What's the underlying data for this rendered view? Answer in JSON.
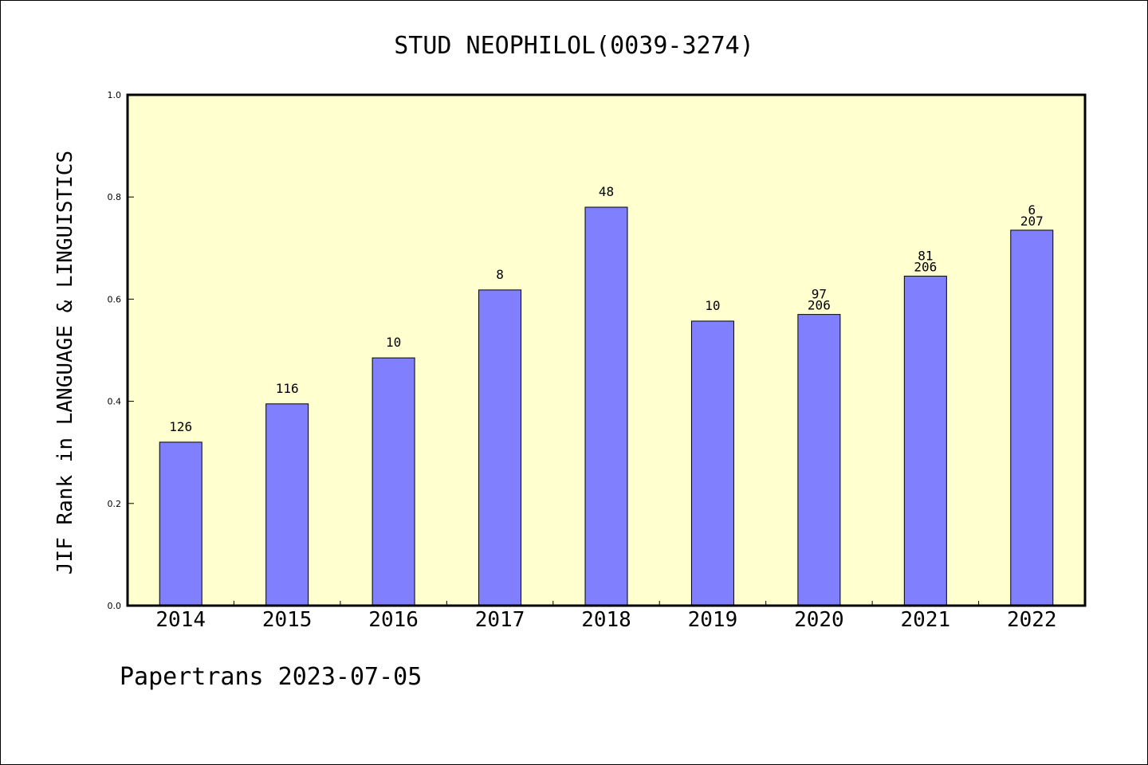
{
  "chart_data": {
    "type": "bar",
    "title": "STUD NEOPHILOL(0039-3274)",
    "ylabel": "JIF Rank in LANGUAGE & LINGUISTICS",
    "xlabel": "",
    "ylim": [
      0,
      1.0
    ],
    "yticks": [
      "0.0",
      "0.2",
      "0.4",
      "0.6",
      "0.8",
      "1.0"
    ],
    "categories": [
      "2014",
      "2015",
      "2016",
      "2017",
      "2018",
      "2019",
      "2020",
      "2021",
      "2022"
    ],
    "values": [
      0.32,
      0.395,
      0.485,
      0.618,
      0.78,
      0.557,
      0.57,
      0.645,
      0.735
    ],
    "labels_top": [
      "",
      "",
      "",
      "",
      "",
      "",
      "97",
      "81",
      "6"
    ],
    "labels_bottom": [
      "126",
      "116",
      "10",
      "8",
      "48",
      "10",
      "206",
      "206",
      "207"
    ],
    "colors": {
      "bar": "#8080ff",
      "plot_bg": "#ffffd0",
      "axis": "#000000"
    },
    "grid": false,
    "legend": "none"
  },
  "footer": {
    "text": "Papertrans 2023-07-05"
  }
}
